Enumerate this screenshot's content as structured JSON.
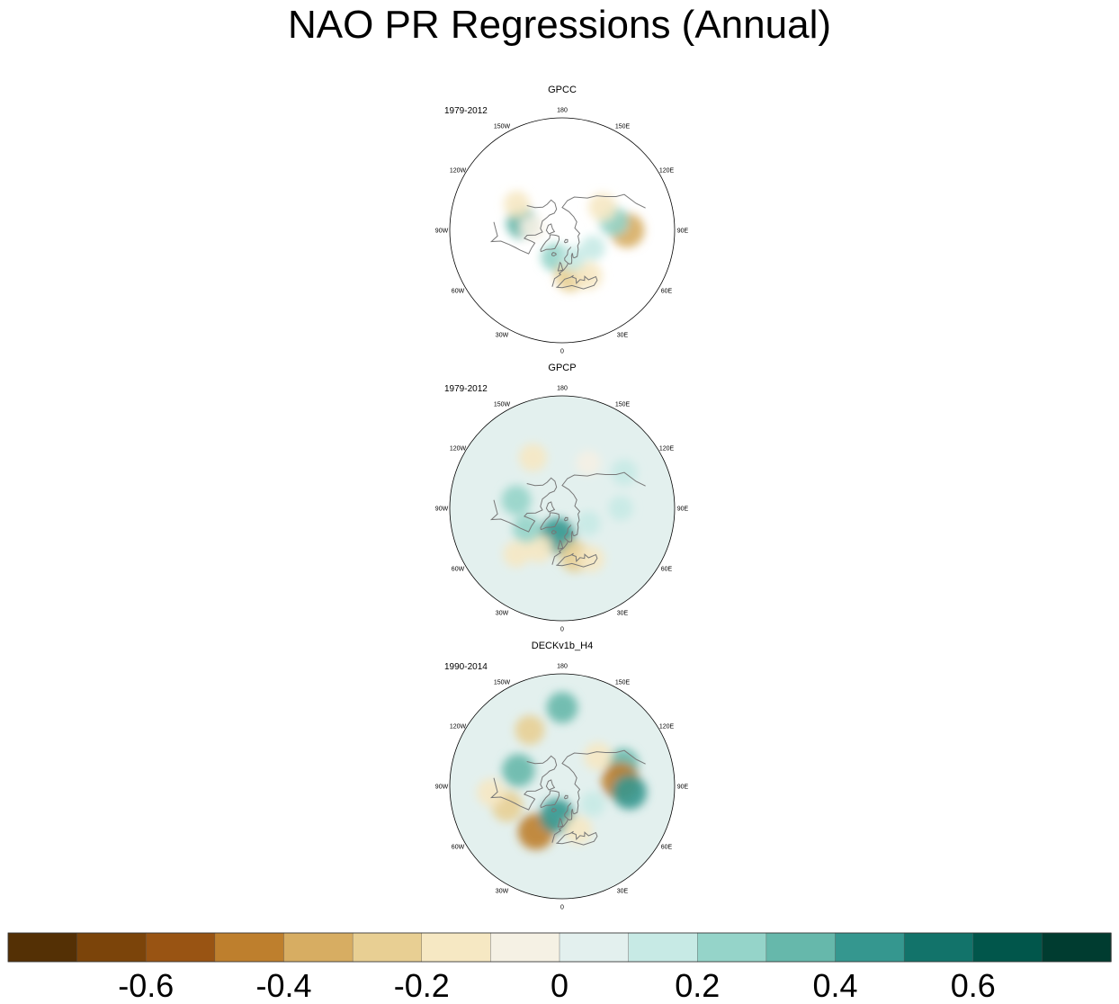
{
  "title": "NAO PR Regressions (Annual)",
  "chart_data": {
    "type": "filled-contour polar map",
    "projection": "polar stereographic, Northern Hemisphere",
    "variable": "precipitation regression on NAO",
    "panels": [
      {
        "name": "GPCC",
        "period": "1979-2012",
        "coverage": "land only",
        "blobs": [
          {
            "lon": -100,
            "lat": 50,
            "v": 0.3
          },
          {
            "lon": -95,
            "lat": 60,
            "v": -0.1
          },
          {
            "lon": -15,
            "lat": 62,
            "v": 0.2
          },
          {
            "lon": 10,
            "lat": 45,
            "v": -0.3
          },
          {
            "lon": 30,
            "lat": 40,
            "v": -0.2
          },
          {
            "lon": 20,
            "lat": 60,
            "v": 0.1
          },
          {
            "lon": 90,
            "lat": 30,
            "v": -0.4
          },
          {
            "lon": 100,
            "lat": 40,
            "v": 0.25
          },
          {
            "lon": 120,
            "lat": 45,
            "v": -0.2
          },
          {
            "lon": 60,
            "lat": 55,
            "v": 0.1
          },
          {
            "lon": -120,
            "lat": 40,
            "v": -0.15
          }
        ]
      },
      {
        "name": "GPCP",
        "period": "1979-2012",
        "coverage": "global",
        "blobs": [
          {
            "lon": -10,
            "lat": 62,
            "v": 0.45
          },
          {
            "lon": -30,
            "lat": 45,
            "v": -0.2
          },
          {
            "lon": -60,
            "lat": 50,
            "v": 0.2
          },
          {
            "lon": -100,
            "lat": 45,
            "v": 0.25
          },
          {
            "lon": 15,
            "lat": 42,
            "v": -0.3
          },
          {
            "lon": 30,
            "lat": 35,
            "v": -0.15
          },
          {
            "lon": -150,
            "lat": 35,
            "v": -0.2
          },
          {
            "lon": 150,
            "lat": 40,
            "v": -0.1
          },
          {
            "lon": 120,
            "lat": 25,
            "v": 0.15
          },
          {
            "lon": 90,
            "lat": 35,
            "v": 0.1
          },
          {
            "lon": -45,
            "lat": 30,
            "v": -0.15
          },
          {
            "lon": 60,
            "lat": 60,
            "v": 0.1
          }
        ]
      },
      {
        "name": "DECKv1b_H4",
        "period": "1990-2014",
        "coverage": "global",
        "blobs": [
          {
            "lon": -30,
            "lat": 40,
            "v": -0.45
          },
          {
            "lon": -70,
            "lat": 35,
            "v": -0.3
          },
          {
            "lon": -85,
            "lat": 25,
            "v": -0.2
          },
          {
            "lon": -10,
            "lat": 60,
            "v": 0.4
          },
          {
            "lon": -110,
            "lat": 45,
            "v": 0.35
          },
          {
            "lon": -150,
            "lat": 30,
            "v": -0.25
          },
          {
            "lon": 180,
            "lat": 20,
            "v": 0.3
          },
          {
            "lon": 110,
            "lat": 30,
            "v": 0.3
          },
          {
            "lon": 95,
            "lat": 35,
            "v": -0.5
          },
          {
            "lon": 85,
            "lat": 28,
            "v": 0.4
          },
          {
            "lon": 130,
            "lat": 45,
            "v": -0.2
          },
          {
            "lon": 20,
            "lat": 45,
            "v": -0.2
          },
          {
            "lon": 60,
            "lat": 55,
            "v": 0.1
          }
        ]
      }
    ],
    "longitude_labels": [
      "180",
      "150E",
      "120E",
      "90E",
      "60E",
      "30E",
      "0",
      "30W",
      "60W",
      "90W",
      "120W",
      "150W"
    ],
    "colorbar": {
      "levels": [
        -0.7,
        -0.6,
        -0.5,
        -0.4,
        -0.3,
        -0.2,
        -0.1,
        0,
        0.1,
        0.2,
        0.3,
        0.4,
        0.5,
        0.6,
        0.7
      ],
      "tick_values": [
        -0.6,
        -0.4,
        -0.2,
        0,
        0.2,
        0.4,
        0.6
      ],
      "tick_labels": [
        "-0.6",
        "-0.4",
        "-0.2",
        "0",
        "0.2",
        "0.4",
        "0.6"
      ],
      "colors": [
        "#543005",
        "#7b440a",
        "#995413",
        "#be7f2d",
        "#d7ad62",
        "#e8cf93",
        "#f6e8c3",
        "#f5f1e4",
        "#e3f0ee",
        "#c7eae5",
        "#95d4c9",
        "#66b8ab",
        "#35978f",
        "#12736a",
        "#01564b",
        "#003c30"
      ]
    }
  }
}
